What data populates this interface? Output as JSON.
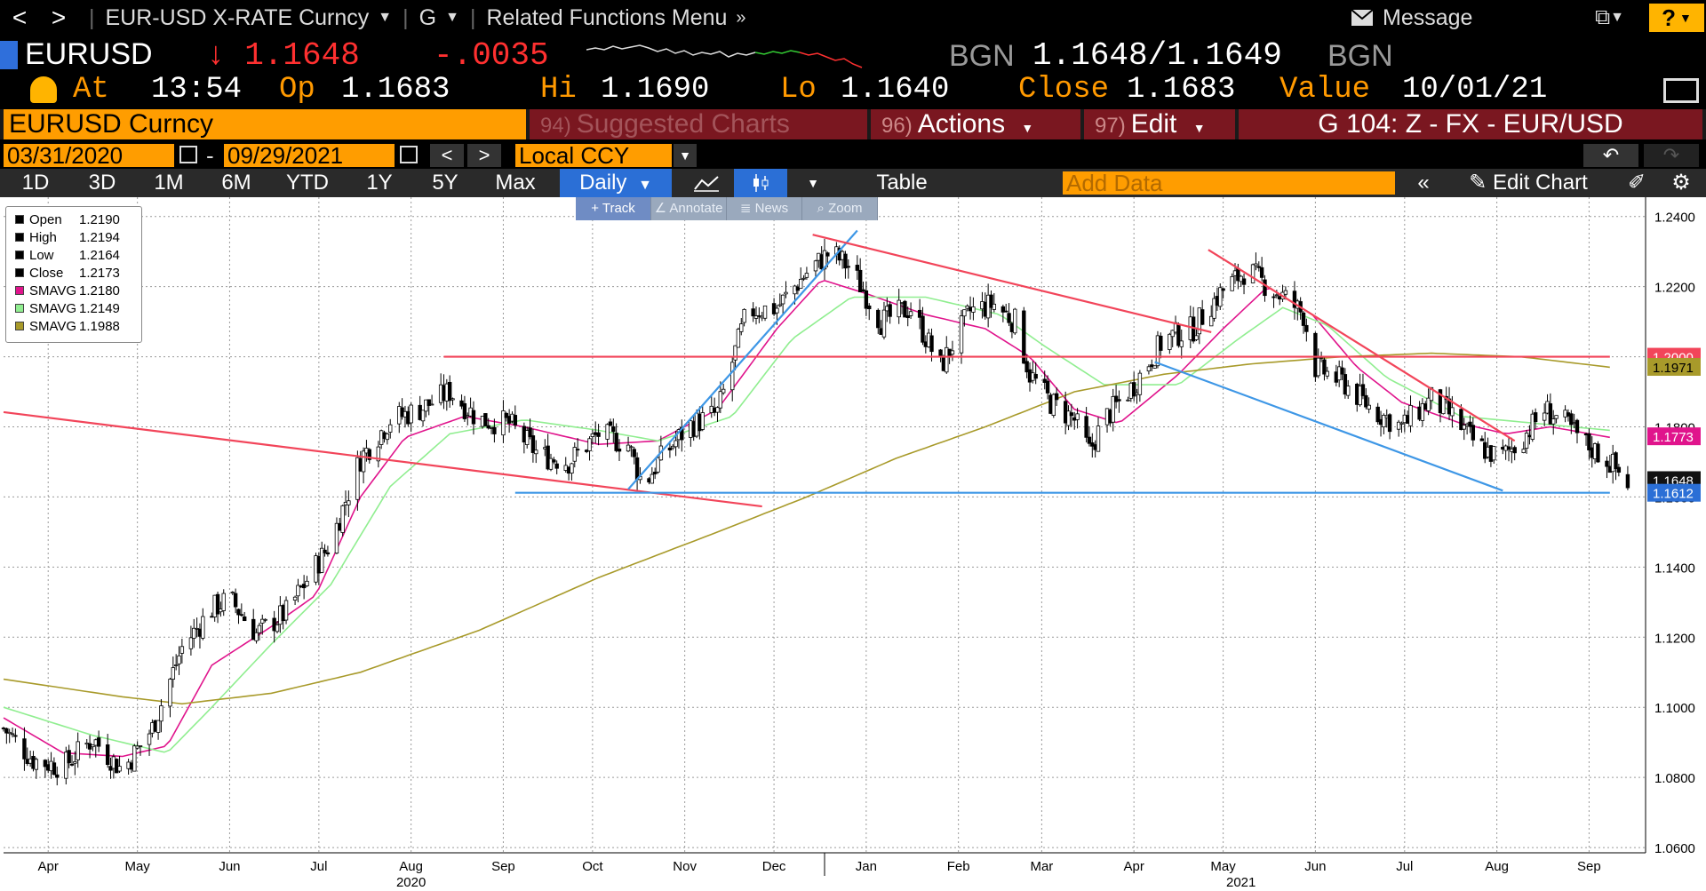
{
  "nav": {
    "back": "<",
    "forward": ">",
    "security_menu": "EUR-USD X-RATE Curncy",
    "g_menu": "G",
    "related": "Related Functions Menu",
    "message": "Message",
    "help": "?"
  },
  "quote": {
    "ticker": "EURUSD",
    "last": "↓ 1.1648",
    "change": "-.0035",
    "source": "BGN",
    "bid_ask": "1.1648/1.1649",
    "at_label": "At",
    "at_time": "13:54",
    "open_label": "Op",
    "open": "1.1683",
    "high_label": "Hi",
    "high": "1.1690",
    "low_label": "Lo",
    "low": "1.1640",
    "close_label": "Close",
    "close": "1.1683",
    "value_label": "Value",
    "value_date": "10/01/21"
  },
  "funcbar": {
    "security": "EURUSD Curncy",
    "suggested_num": "94)",
    "suggested": "Suggested Charts",
    "actions_num": "96)",
    "actions": "Actions",
    "edit_num": "97)",
    "edit": "Edit",
    "chart_name": "G 104: Z - FX - EUR/USD"
  },
  "datebar": {
    "start": "03/31/2020",
    "dash": "-",
    "end": "09/29/2021",
    "prev": "<",
    "next": ">",
    "currency": "Local CCY"
  },
  "toolbar": {
    "ranges": [
      "1D",
      "3D",
      "1M",
      "6M",
      "YTD",
      "1Y",
      "5Y",
      "Max"
    ],
    "frequency": "Daily",
    "table": "Table",
    "add_data_placeholder": "Add Data",
    "edit_chart": "Edit Chart"
  },
  "mini_tools": [
    "Track",
    "Annotate",
    "News",
    "Zoom"
  ],
  "legend": [
    {
      "name": "Open",
      "value": "1.2190",
      "color": "#000000"
    },
    {
      "name": "High",
      "value": "1.2194",
      "color": "#000000"
    },
    {
      "name": "Low",
      "value": "1.2164",
      "color": "#000000"
    },
    {
      "name": "Close",
      "value": "1.2173",
      "color": "#000000"
    },
    {
      "name": "SMAVG",
      "value": "1.2180",
      "color": "#e0148c"
    },
    {
      "name": "SMAVG",
      "value": "1.2149",
      "color": "#90ee90"
    },
    {
      "name": "SMAVG",
      "value": "1.1988",
      "color": "#a89a2a"
    }
  ],
  "chart_data": {
    "type": "candlestick",
    "ylim": [
      1.0585,
      1.2455
    ],
    "y_ticks": [
      "1.0600",
      "1.0800",
      "1.1000",
      "1.1200",
      "1.1400",
      "1.1600",
      "1.1800",
      "1.2000",
      "1.2200",
      "1.2400"
    ],
    "x_months": [
      {
        "label": "Apr",
        "day": 15
      },
      {
        "label": "May",
        "day": 45
      },
      {
        "label": "Jun",
        "day": 76
      },
      {
        "label": "Jul",
        "day": 106
      },
      {
        "label": "Aug",
        "day": 137
      },
      {
        "label": "Sep",
        "day": 168
      },
      {
        "label": "Oct",
        "day": 198
      },
      {
        "label": "Nov",
        "day": 229
      },
      {
        "label": "Dec",
        "day": 259
      },
      {
        "label": "Jan",
        "day": 290
      },
      {
        "label": "Feb",
        "day": 321
      },
      {
        "label": "Mar",
        "day": 349
      },
      {
        "label": "Apr",
        "day": 380
      },
      {
        "label": "May",
        "day": 410
      },
      {
        "label": "Jun",
        "day": 441
      },
      {
        "label": "Jul",
        "day": 471
      },
      {
        "label": "Aug",
        "day": 502
      },
      {
        "label": "Sep",
        "day": 533
      }
    ],
    "x_years": [
      {
        "label": "2020",
        "day": 137
      },
      {
        "label": "2021",
        "day": 416
      }
    ],
    "year_divider_day": 276,
    "price_path": [
      [
        0,
        1.094
      ],
      [
        10,
        1.085
      ],
      [
        20,
        1.083
      ],
      [
        30,
        1.091
      ],
      [
        40,
        1.082
      ],
      [
        50,
        1.094
      ],
      [
        60,
        1.117
      ],
      [
        70,
        1.128
      ],
      [
        76,
        1.131
      ],
      [
        85,
        1.121
      ],
      [
        95,
        1.127
      ],
      [
        110,
        1.147
      ],
      [
        120,
        1.171
      ],
      [
        130,
        1.182
      ],
      [
        140,
        1.185
      ],
      [
        150,
        1.19
      ],
      [
        160,
        1.182
      ],
      [
        170,
        1.181
      ],
      [
        180,
        1.172
      ],
      [
        190,
        1.17
      ],
      [
        200,
        1.178
      ],
      [
        210,
        1.175
      ],
      [
        215,
        1.163
      ],
      [
        220,
        1.17
      ],
      [
        230,
        1.18
      ],
      [
        240,
        1.184
      ],
      [
        250,
        1.213
      ],
      [
        260,
        1.214
      ],
      [
        270,
        1.224
      ],
      [
        278,
        1.23
      ],
      [
        285,
        1.225
      ],
      [
        295,
        1.21
      ],
      [
        305,
        1.214
      ],
      [
        315,
        1.197
      ],
      [
        325,
        1.213
      ],
      [
        333,
        1.215
      ],
      [
        340,
        1.21
      ],
      [
        345,
        1.195
      ],
      [
        352,
        1.187
      ],
      [
        360,
        1.182
      ],
      [
        365,
        1.173
      ],
      [
        370,
        1.182
      ],
      [
        380,
        1.192
      ],
      [
        390,
        1.205
      ],
      [
        400,
        1.208
      ],
      [
        405,
        1.214
      ],
      [
        410,
        1.219
      ],
      [
        418,
        1.225
      ],
      [
        425,
        1.22
      ],
      [
        432,
        1.216
      ],
      [
        437,
        1.212
      ],
      [
        441,
        1.197
      ],
      [
        450,
        1.193
      ],
      [
        460,
        1.185
      ],
      [
        470,
        1.18
      ],
      [
        480,
        1.188
      ],
      [
        487,
        1.183
      ],
      [
        495,
        1.175
      ],
      [
        503,
        1.171
      ],
      [
        510,
        1.176
      ],
      [
        518,
        1.185
      ],
      [
        525,
        1.181
      ],
      [
        532,
        1.175
      ],
      [
        540,
        1.17
      ],
      [
        546,
        1.164
      ]
    ],
    "series": [
      {
        "name": "SMAVG",
        "color": "#e0148c",
        "path": [
          [
            0,
            1.097
          ],
          [
            20,
            1.087
          ],
          [
            40,
            1.086
          ],
          [
            55,
            1.089
          ],
          [
            70,
            1.112
          ],
          [
            90,
            1.123
          ],
          [
            105,
            1.132
          ],
          [
            120,
            1.16
          ],
          [
            135,
            1.177
          ],
          [
            155,
            1.183
          ],
          [
            175,
            1.18
          ],
          [
            200,
            1.175
          ],
          [
            220,
            1.176
          ],
          [
            240,
            1.185
          ],
          [
            260,
            1.208
          ],
          [
            275,
            1.222
          ],
          [
            290,
            1.218
          ],
          [
            310,
            1.212
          ],
          [
            330,
            1.208
          ],
          [
            345,
            1.2
          ],
          [
            360,
            1.185
          ],
          [
            375,
            1.181
          ],
          [
            395,
            1.195
          ],
          [
            410,
            1.208
          ],
          [
            425,
            1.22
          ],
          [
            440,
            1.212
          ],
          [
            455,
            1.197
          ],
          [
            470,
            1.187
          ],
          [
            490,
            1.181
          ],
          [
            505,
            1.178
          ],
          [
            520,
            1.18
          ],
          [
            540,
            1.177
          ]
        ]
      },
      {
        "name": "SMAVG",
        "color": "#90ee90",
        "path": [
          [
            0,
            1.1
          ],
          [
            30,
            1.092
          ],
          [
            55,
            1.087
          ],
          [
            70,
            1.1
          ],
          [
            90,
            1.118
          ],
          [
            110,
            1.135
          ],
          [
            130,
            1.163
          ],
          [
            150,
            1.178
          ],
          [
            175,
            1.182
          ],
          [
            200,
            1.179
          ],
          [
            220,
            1.176
          ],
          [
            245,
            1.183
          ],
          [
            265,
            1.205
          ],
          [
            285,
            1.217
          ],
          [
            310,
            1.217
          ],
          [
            335,
            1.212
          ],
          [
            350,
            1.203
          ],
          [
            370,
            1.192
          ],
          [
            395,
            1.192
          ],
          [
            415,
            1.205
          ],
          [
            430,
            1.214
          ],
          [
            445,
            1.209
          ],
          [
            465,
            1.194
          ],
          [
            490,
            1.183
          ],
          [
            515,
            1.181
          ],
          [
            540,
            1.179
          ]
        ]
      },
      {
        "name": "SMAVG",
        "color": "#a89a2a",
        "path": [
          [
            0,
            1.108
          ],
          [
            40,
            1.103
          ],
          [
            60,
            1.101
          ],
          [
            90,
            1.104
          ],
          [
            120,
            1.11
          ],
          [
            160,
            1.122
          ],
          [
            200,
            1.137
          ],
          [
            240,
            1.15
          ],
          [
            270,
            1.16
          ],
          [
            300,
            1.171
          ],
          [
            330,
            1.18
          ],
          [
            360,
            1.19
          ],
          [
            390,
            1.195
          ],
          [
            420,
            1.198
          ],
          [
            450,
            1.2
          ],
          [
            480,
            1.201
          ],
          [
            510,
            1.2
          ],
          [
            540,
            1.197
          ]
        ]
      }
    ],
    "trendlines": [
      {
        "color": "#f2455a",
        "from": [
          0,
          1.1842
        ],
        "to": [
          255,
          1.1573
        ]
      },
      {
        "color": "#f2455a",
        "from": [
          148,
          1.2
        ],
        "to": [
          540,
          1.2
        ]
      },
      {
        "color": "#3e97e6",
        "from": [
          172,
          1.1612
        ],
        "to": [
          540,
          1.1612
        ]
      },
      {
        "color": "#3e97e6",
        "from": [
          210,
          1.1622
        ],
        "to": [
          287,
          1.236
        ]
      },
      {
        "color": "#f2455a",
        "from": [
          272,
          1.2348
        ],
        "to": [
          406,
          1.207
        ]
      },
      {
        "color": "#3e97e6",
        "from": [
          387,
          1.1985
        ],
        "to": [
          504,
          1.1618
        ]
      },
      {
        "color": "#f2455a",
        "from": [
          405,
          1.2305
        ],
        "to": [
          508,
          1.176
        ]
      }
    ],
    "price_labels": [
      {
        "value": 1.2,
        "text": "1.2000",
        "bg": "#f2455a",
        "fg": "#ffffff"
      },
      {
        "value": 1.1971,
        "text": "1.1971",
        "bg": "#a89a2a",
        "fg": "#000000"
      },
      {
        "value": 1.1773,
        "text": "1.1773",
        "bg": "#e0148c",
        "fg": "#ffffff"
      },
      {
        "value": 1.1648,
        "text": "1.1648",
        "bg": "#111111",
        "fg": "#ffffff"
      },
      {
        "value": 1.1612,
        "text": "1.1612",
        "bg": "#2b6fd6",
        "fg": "#ffffff"
      }
    ]
  }
}
